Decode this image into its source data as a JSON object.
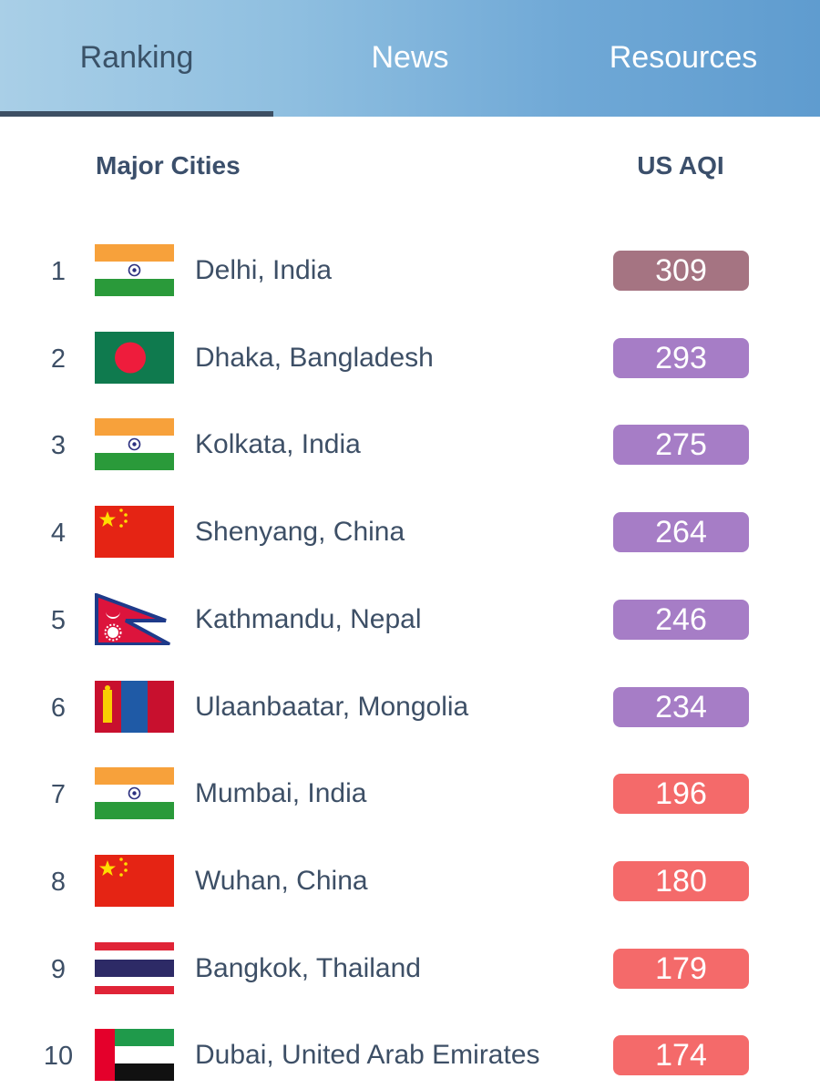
{
  "tabs": [
    {
      "label": "Ranking",
      "active": true
    },
    {
      "label": "News",
      "active": false
    },
    {
      "label": "Resources",
      "active": false
    }
  ],
  "table": {
    "header_city": "Major Cities",
    "header_aqi": "US AQI",
    "rows": [
      {
        "rank": "1",
        "flag": "india-flag-icon",
        "city": "Delhi, India",
        "aqi": "309",
        "color": "#a57482"
      },
      {
        "rank": "2",
        "flag": "bangladesh-flag-icon",
        "city": "Dhaka, Bangladesh",
        "aqi": "293",
        "color": "#a67dc6"
      },
      {
        "rank": "3",
        "flag": "india-flag-icon",
        "city": "Kolkata, India",
        "aqi": "275",
        "color": "#a67dc6"
      },
      {
        "rank": "4",
        "flag": "china-flag-icon",
        "city": "Shenyang, China",
        "aqi": "264",
        "color": "#a67dc6"
      },
      {
        "rank": "5",
        "flag": "nepal-flag-icon",
        "city": "Kathmandu, Nepal",
        "aqi": "246",
        "color": "#a67dc6"
      },
      {
        "rank": "6",
        "flag": "mongolia-flag-icon",
        "city": "Ulaanbaatar, Mongolia",
        "aqi": "234",
        "color": "#a67dc6"
      },
      {
        "rank": "7",
        "flag": "india-flag-icon",
        "city": "Mumbai, India",
        "aqi": "196",
        "color": "#f46a6a"
      },
      {
        "rank": "8",
        "flag": "china-flag-icon",
        "city": "Wuhan, China",
        "aqi": "180",
        "color": "#f46a6a"
      },
      {
        "rank": "9",
        "flag": "thailand-flag-icon",
        "city": "Bangkok, Thailand",
        "aqi": "179",
        "color": "#f46a6a"
      },
      {
        "rank": "10",
        "flag": "uae-flag-icon",
        "city": "Dubai, United Arab Emirates",
        "aqi": "174",
        "color": "#f46a6a"
      }
    ]
  }
}
